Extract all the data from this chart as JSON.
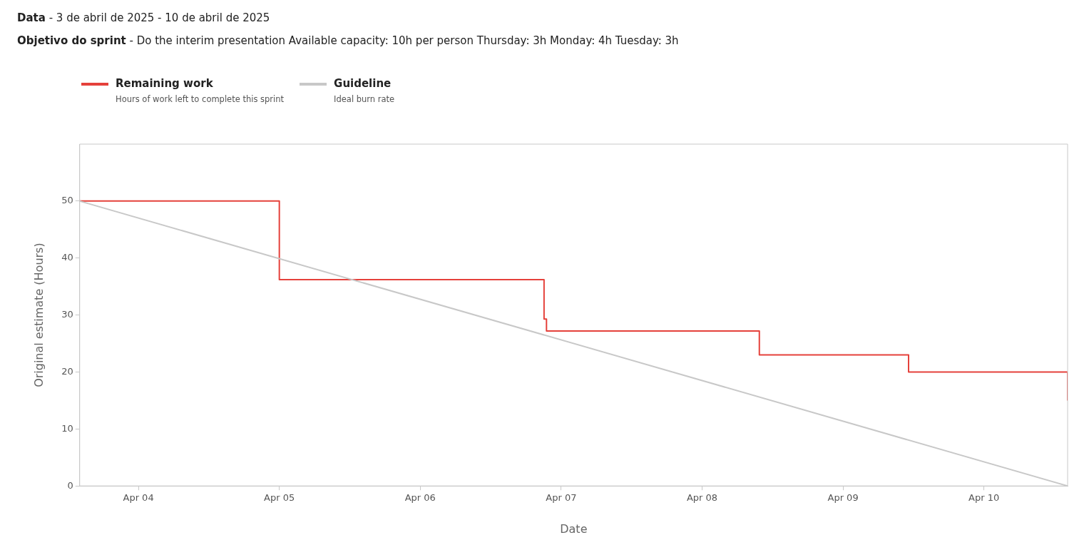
{
  "chart_data": {
    "type": "step",
    "title": "Data - 3 de abril de 2025 - 10 de abril de 2025",
    "subtitle": "Objetivo do sprint - Do the interim presentation Available capacity: 10h per person Thursday: 3h Monday: 4h Tuesday: 3h",
    "xlabel": "Date",
    "ylabel": "Original estimate (Hours)",
    "series": [
      {
        "name": "Remaining work",
        "type": "step",
        "color": "#e5413b",
        "x": [
          "2025-04-03T14:00",
          "2025-04-05T00:00",
          "2025-04-06T21:05",
          "2025-04-06T21:30",
          "2025-04-08T09:45",
          "2025-04-09T11:10",
          "2025-04-10T14:15"
        ],
        "values": [
          50,
          36.2,
          29.3,
          27.2,
          23,
          20,
          15
        ]
      },
      {
        "name": "Guideline",
        "type": "line",
        "color": "#c8c8c8",
        "x": [
          "2025-04-03T14:00",
          "2025-04-10T14:15"
        ],
        "values": [
          50,
          0
        ]
      }
    ],
    "annotations": [
      "Hours of work left to complete this sprint",
      "Ideal burn rate"
    ],
    "xlim": [
      "2025-04-03T14:00",
      "2025-04-10T14:15"
    ],
    "xticks": [
      {
        "value": "2025-04-04",
        "label": "Apr 04"
      },
      {
        "value": "2025-04-05",
        "label": "Apr 05"
      },
      {
        "value": "2025-04-06",
        "label": "Apr 06"
      },
      {
        "value": "2025-04-07",
        "label": "Apr 07"
      },
      {
        "value": "2025-04-08",
        "label": "Apr 08"
      },
      {
        "value": "2025-04-09",
        "label": "Apr 09"
      },
      {
        "value": "2025-04-10",
        "label": "Apr 10"
      }
    ],
    "ylim": [
      0,
      60
    ],
    "yticks": [
      0,
      10,
      20,
      30,
      40,
      50
    ],
    "grid": false,
    "legend": "top left",
    "marker": "none",
    "line_style": "solid"
  }
}
